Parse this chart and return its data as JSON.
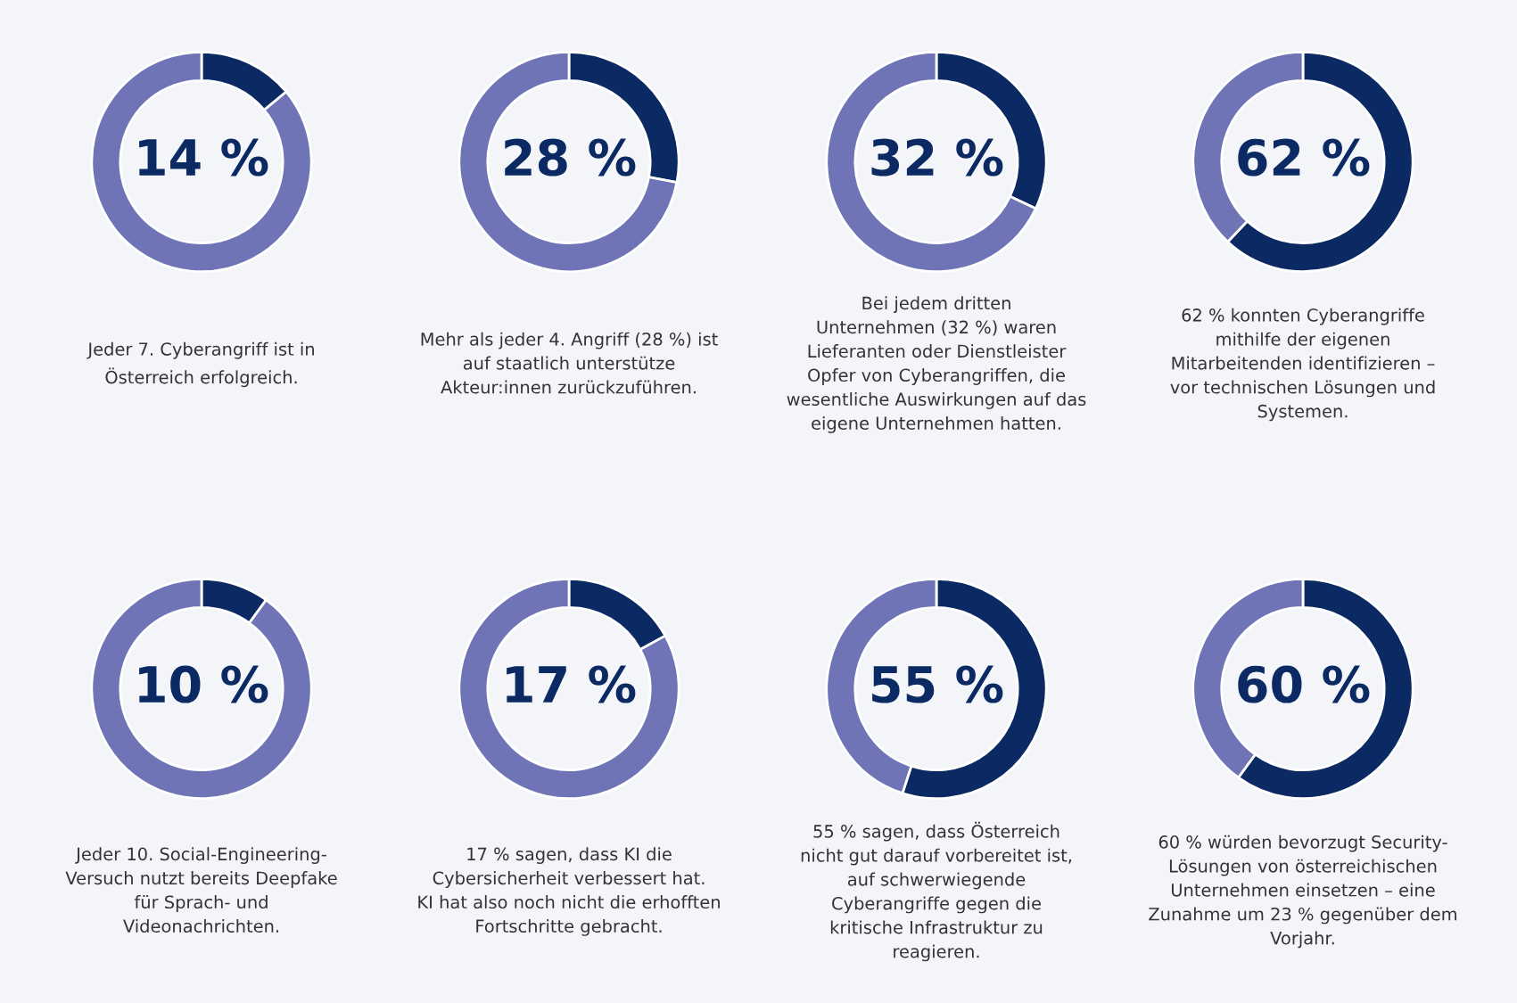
{
  "chart_data": [
    {
      "type": "donut",
      "categories": [
        null,
        null
      ],
      "values": [
        14,
        86
      ],
      "colors": [
        "#0b2a63",
        "#6e74b6"
      ],
      "value_labels": [
        "14 %",
        null
      ],
      "annotations": [
        "Jeder 7. Cyberangriff ist in\nÖsterreich erfolgreich."
      ]
    },
    {
      "type": "donut",
      "categories": [
        null,
        null
      ],
      "values": [
        28,
        72
      ],
      "colors": [
        "#0b2a63",
        "#6e74b6"
      ],
      "value_labels": [
        "28 %",
        null
      ],
      "annotations": [
        "Mehr als jeder 4. Angriff (28 %) ist\nauf staatlich unterstütze\nAkteur:innen zurückzuführen."
      ]
    },
    {
      "type": "donut",
      "categories": [
        null,
        null
      ],
      "values": [
        32,
        68
      ],
      "colors": [
        "#0b2a63",
        "#6e74b6"
      ],
      "value_labels": [
        "32 %",
        null
      ],
      "annotations": [
        "Bei jedem dritten\nUnternehmen (32 %) waren\nLieferanten oder Dienstleister\nOpfer von Cyberangriffen, die\nwesentliche Auswirkungen auf das\neigene Unternehmen hatten."
      ]
    },
    {
      "type": "donut",
      "categories": [
        null,
        null
      ],
      "values": [
        62,
        38
      ],
      "colors": [
        "#0b2a63",
        "#6e74b6"
      ],
      "value_labels": [
        "62 %",
        null
      ],
      "annotations": [
        "62 % konnten Cyberangriffe\nmithilfe der eigenen\nMitarbeitenden identifizieren –\nvor technischen Lösungen und\nSystemen."
      ]
    },
    {
      "type": "donut",
      "categories": [
        null,
        null
      ],
      "values": [
        10,
        90
      ],
      "colors": [
        "#0b2a63",
        "#6e74b6"
      ],
      "value_labels": [
        "10 %",
        null
      ],
      "annotations": [
        "Jeder 10. Social-Engineering-\nVersuch nutzt bereits Deepfake\nfür Sprach- und\nVideonachrichten."
      ]
    },
    {
      "type": "donut",
      "categories": [
        null,
        null
      ],
      "values": [
        17,
        83
      ],
      "colors": [
        "#0b2a63",
        "#6e74b6"
      ],
      "value_labels": [
        "17 %",
        null
      ],
      "annotations": [
        "17 % sagen, dass KI die\nCybersicherheit verbessert hat.\nKI hat also noch nicht die erhofften\nFortschritte gebracht."
      ]
    },
    {
      "type": "donut",
      "categories": [
        null,
        null
      ],
      "values": [
        55,
        45
      ],
      "colors": [
        "#0b2a63",
        "#6e74b6"
      ],
      "value_labels": [
        "55 %",
        null
      ],
      "annotations": [
        "55 % sagen, dass Österreich\nnicht gut darauf vorbereitet ist,\nauf schwerwiegende\nCyberangriffe gegen die\nkritische Infrastruktur zu\nreagieren."
      ]
    },
    {
      "type": "donut",
      "categories": [
        null,
        null
      ],
      "values": [
        60,
        40
      ],
      "colors": [
        "#0b2a63",
        "#6e74b6"
      ],
      "value_labels": [
        "60 %",
        null
      ],
      "annotations": [
        "60 % würden bevorzugt Security-\nLösungen von österreichischen\nUnternehmen einsetzen – eine\nZunahme um 23 % gegenüber dem\nVorjahr."
      ]
    }
  ]
}
